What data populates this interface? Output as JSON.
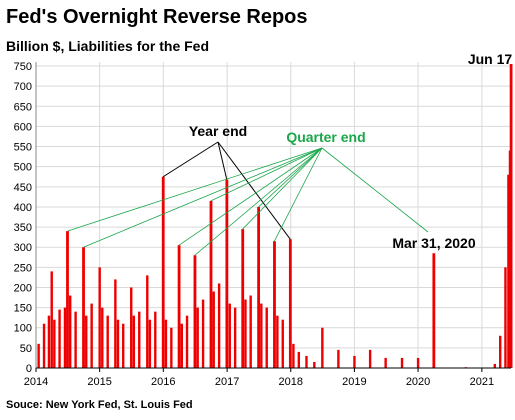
{
  "title": "Fed's Overnight  Reverse Repos",
  "subtitle": "Billion $, Liabilities for the Fed",
  "source": "Souce: New York Fed, St. Louis Fed",
  "chart_data": {
    "type": "area",
    "title": "Fed's Overnight  Reverse Repos",
    "subtitle": "Billion $, Liabilities for the Fed",
    "ylim": [
      0,
      760
    ],
    "yticks": [
      0,
      50,
      100,
      150,
      200,
      250,
      300,
      350,
      400,
      450,
      500,
      550,
      600,
      650,
      700,
      750
    ],
    "xlim": [
      "2014-01-01",
      "2021-06-17"
    ],
    "xticks": [
      "2014",
      "2015",
      "2016",
      "2017",
      "2018",
      "2019",
      "2020",
      "2021"
    ],
    "grid": true,
    "color": "#ee0000",
    "spikes": [
      {
        "date": "2014-06-30",
        "value": 340
      },
      {
        "date": "2014-09-30",
        "value": 300
      },
      {
        "date": "2015-12-31",
        "value": 475
      },
      {
        "date": "2016-03-31",
        "value": 305
      },
      {
        "date": "2016-06-30",
        "value": 280
      },
      {
        "date": "2016-09-30",
        "value": 415
      },
      {
        "date": "2016-12-30",
        "value": 468
      },
      {
        "date": "2017-03-31",
        "value": 345
      },
      {
        "date": "2017-06-30",
        "value": 400
      },
      {
        "date": "2017-09-29",
        "value": 315
      },
      {
        "date": "2017-12-29",
        "value": 320
      },
      {
        "date": "2020-03-31",
        "value": 285
      },
      {
        "date": "2021-06-17",
        "value": 755
      }
    ],
    "series": [
      {
        "date": "2014-01-15",
        "value": 60
      },
      {
        "date": "2014-02-15",
        "value": 110
      },
      {
        "date": "2014-03-15",
        "value": 130
      },
      {
        "date": "2014-03-31",
        "value": 240
      },
      {
        "date": "2014-04-15",
        "value": 120
      },
      {
        "date": "2014-05-15",
        "value": 145
      },
      {
        "date": "2014-06-15",
        "value": 150
      },
      {
        "date": "2014-07-15",
        "value": 180
      },
      {
        "date": "2014-08-15",
        "value": 140
      },
      {
        "date": "2014-10-15",
        "value": 130
      },
      {
        "date": "2014-11-15",
        "value": 160
      },
      {
        "date": "2014-12-31",
        "value": 250
      },
      {
        "date": "2015-01-15",
        "value": 150
      },
      {
        "date": "2015-02-15",
        "value": 130
      },
      {
        "date": "2015-03-31",
        "value": 220
      },
      {
        "date": "2015-04-15",
        "value": 120
      },
      {
        "date": "2015-05-15",
        "value": 110
      },
      {
        "date": "2015-06-30",
        "value": 200
      },
      {
        "date": "2015-07-15",
        "value": 130
      },
      {
        "date": "2015-08-15",
        "value": 140
      },
      {
        "date": "2015-09-30",
        "value": 230
      },
      {
        "date": "2015-10-15",
        "value": 120
      },
      {
        "date": "2015-11-15",
        "value": 140
      },
      {
        "date": "2016-01-15",
        "value": 120
      },
      {
        "date": "2016-02-15",
        "value": 100
      },
      {
        "date": "2016-04-15",
        "value": 110
      },
      {
        "date": "2016-05-15",
        "value": 130
      },
      {
        "date": "2016-07-15",
        "value": 150
      },
      {
        "date": "2016-08-15",
        "value": 170
      },
      {
        "date": "2016-10-15",
        "value": 190
      },
      {
        "date": "2016-11-15",
        "value": 210
      },
      {
        "date": "2017-01-15",
        "value": 160
      },
      {
        "date": "2017-02-15",
        "value": 150
      },
      {
        "date": "2017-04-15",
        "value": 170
      },
      {
        "date": "2017-05-15",
        "value": 180
      },
      {
        "date": "2017-07-15",
        "value": 160
      },
      {
        "date": "2017-08-15",
        "value": 150
      },
      {
        "date": "2017-10-15",
        "value": 130
      },
      {
        "date": "2017-11-15",
        "value": 120
      },
      {
        "date": "2018-01-15",
        "value": 60
      },
      {
        "date": "2018-02-15",
        "value": 40
      },
      {
        "date": "2018-03-31",
        "value": 30
      },
      {
        "date": "2018-05-15",
        "value": 15
      },
      {
        "date": "2018-06-30",
        "value": 100
      },
      {
        "date": "2018-09-30",
        "value": 45
      },
      {
        "date": "2018-12-31",
        "value": 30
      },
      {
        "date": "2019-03-31",
        "value": 45
      },
      {
        "date": "2019-06-28",
        "value": 25
      },
      {
        "date": "2019-09-30",
        "value": 25
      },
      {
        "date": "2019-12-31",
        "value": 25
      },
      {
        "date": "2020-04-15",
        "value": 0
      },
      {
        "date": "2020-09-30",
        "value": 2
      },
      {
        "date": "2021-03-15",
        "value": 10
      },
      {
        "date": "2021-04-15",
        "value": 80
      },
      {
        "date": "2021-05-15",
        "value": 250
      },
      {
        "date": "2021-06-01",
        "value": 480
      },
      {
        "date": "2021-06-10",
        "value": 540
      }
    ],
    "annotations": [
      {
        "text": "Year end",
        "color": "#000000"
      },
      {
        "text": "Quarter end",
        "color": "#1aa64a"
      },
      {
        "text": "Mar 31, 2020",
        "color": "#000000"
      },
      {
        "text": "Jun 17",
        "color": "#000000"
      }
    ]
  }
}
